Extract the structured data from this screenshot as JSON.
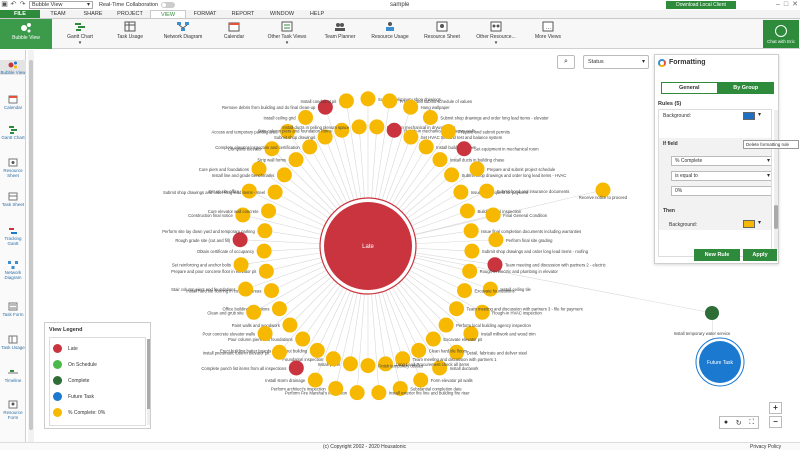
{
  "topbar": {
    "view_select": "Bubble View",
    "realtime_label": "Real-Time Collaboration",
    "doc_title": "sample",
    "download_label": "Download Local Client"
  },
  "menu": {
    "tabs": [
      "FILE",
      "TEAM",
      "SHARE",
      "PROJECT",
      "VIEW",
      "FORMAT",
      "REPORT",
      "WINDOW",
      "HELP"
    ],
    "active": "VIEW"
  },
  "ribbon": {
    "bubble_view": "Bubble View",
    "buttons": [
      "Gantt Chart",
      "Task Usage",
      "Network Diagram",
      "Calendar",
      "Other Task Views",
      "Team Planner",
      "Resource Usage",
      "Resource Sheet",
      "Other Resource...",
      "More Views"
    ],
    "chat_label": "Chat with Eric"
  },
  "sidebar": {
    "items": [
      "Bubble View",
      "Calendar",
      "Gantt Chart",
      "Resource Sheet",
      "Task Sheet",
      "Tracking Gantt",
      "Network Diagram",
      "Task Form",
      "Task Usage",
      "Timeline",
      "Resource Form"
    ]
  },
  "toolbar": {
    "status_select": "Status"
  },
  "formatting": {
    "title": "Formatting",
    "tab_general": "General",
    "tab_bygroup": "By Group",
    "rules_label": "Rules (5)",
    "background_label": "Background:",
    "if_field_label": "If field",
    "field_value": "% Complete",
    "operator_value": "is equal to",
    "value_input": "0%",
    "then_label": "Then",
    "then_background_label": "Background:",
    "tooltip": "Delete formatting rule",
    "new_rule": "New Rule",
    "apply": "Apply",
    "colors": {
      "swatch1": "#1f6fc4",
      "swatch2": "#f6b800"
    }
  },
  "legend": {
    "title": "View Legend",
    "items": [
      {
        "label": "Late",
        "color": "#c9343e"
      },
      {
        "label": "On Schedule",
        "color": "#4cb84a"
      },
      {
        "label": "Complete",
        "color": "#2e6e36"
      },
      {
        "label": "Future Task",
        "color": "#1b79d0"
      },
      {
        "label": "% Complete: 0%",
        "color": "#f6b800"
      }
    ]
  },
  "bubbles": {
    "center_label": "Late",
    "future_label": "Future Task",
    "task_labels": [
      "Submit preliminary shop drawings",
      "Rough-in mechanical in drywall walls",
      "Prepare and submit schedule of values",
      "Rough-in mechanical in masonry walls",
      "Hang wallpaper",
      "Set HVAC trim and test and balance system",
      "Submit shop drawings and order long lead items - elevator",
      "Install building carpet",
      "Prepare and submit permits",
      "Install ducts in building chase",
      "Set equipment in mechanical room",
      "Submit shop drawings and order long lead items - HVAC",
      "Prepare and submit project schedule",
      "Issue final request for payment",
      "Submit bond and insurance documents",
      "Building final inspection",
      "Final General Condition",
      "Issue final completion documents including warranties",
      "Perform final site grading",
      "Submit shop drawings and order long lead items - roofing",
      "Team meeting and discussion with partners 2 - electric",
      "Rough-in electric and plumbing in elevator",
      "Install ceiling tile",
      "Excavate foundations",
      "Rough-in HVAC inspection",
      "Team meeting and discussion with partners 3 - file for payment",
      "Install millwork and wood trim",
      "Perform local building agency inspection",
      "Detail, fabricate and deliver steel",
      "Excavate elevator pit",
      "Install ductwork",
      "Clean hard tile floors",
      "Form elevator pit walls",
      "Team meeting and discussion with partners 1",
      "Substantial completion date",
      "Long Lead Procurement check all items",
      "Install exterior fire line and building fire riser",
      "Finish temporary utilities",
      "Perform Fire Marshal's inspection",
      "Install paper",
      "Perform architect's inspection",
      "Foundation inspection",
      "Install storm drainage",
      "Erect building batter boards and layout building",
      "Complete punch list items from all inspections",
      "Pour column piers and foundations",
      "Install pneumatic tube in elevator pit",
      "Paint walls and woodwork",
      "Pour concrete elevator walls",
      "Office building receptions",
      "Clean and grub site",
      "Install hard tile flooring in common areas",
      "Stair column piers and foundations",
      "Prepare and pour concrete floor in elevator pit",
      "Set reinforcing and anchor bolts",
      "Obtain certificate of occupancy",
      "Rough grade site (cut and fill)",
      "Perform site lay down yard and temporary parking",
      "Construction final notice",
      "Cure elevator wall concrete",
      "Set up site office",
      "Submit shop drawings and order long lead items - steel",
      "Cure piers and foundations",
      "Install line and grade benchmarks",
      "Complete elevator",
      "Strip wall forms",
      "Access and temporary parking area",
      "Complete elevator inspection and certification",
      "Install ceiling grid",
      "Submit shop drawings",
      "Remove debris from building and do final clean-up",
      "Strip column piers and foundation forms",
      "Install conduit at pit",
      "Install ducts in ceiling plenum space",
      "Receive notice to proceed",
      "Install temporary water service"
    ]
  },
  "footer": {
    "copyright": "(c) Copyright 2002 - 2020 Housatonic",
    "privacy": "Privacy Policy"
  }
}
